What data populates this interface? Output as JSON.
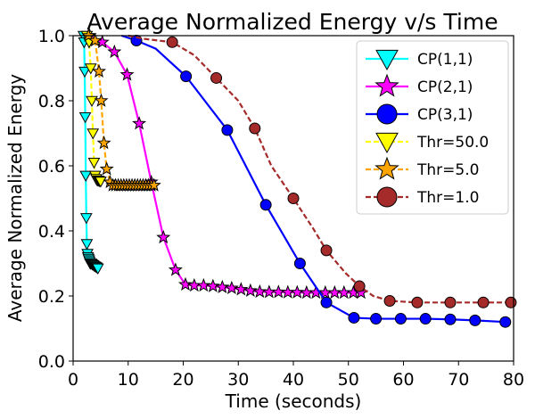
{
  "chart_data": {
    "type": "line",
    "title": "Average Normalized Energy v/s Time",
    "xlabel": "Time (seconds)",
    "ylabel": "Average Normalized Energy",
    "xlim": [
      0,
      80
    ],
    "ylim": [
      0,
      1.0
    ],
    "xticks": [
      0,
      10,
      20,
      30,
      40,
      50,
      60,
      70,
      80
    ],
    "yticks": [
      0.0,
      0.2,
      0.4,
      0.6,
      0.8,
      1.0
    ],
    "xtick_labels": [
      "0",
      "10",
      "20",
      "30",
      "40",
      "50",
      "60",
      "70",
      "80"
    ],
    "ytick_labels": [
      "0.0",
      "0.2",
      "0.4",
      "0.6",
      "0.8",
      "1.0"
    ],
    "grid": false,
    "legend_position": "top-right",
    "series": [
      {
        "name": "CP(1,1)",
        "color": "#00ffff",
        "line_style": "solid",
        "marker": "triangle-down",
        "x": [
          1.9,
          2.0,
          2.1,
          2.2,
          2.3,
          2.4,
          2.5,
          2.6,
          2.7,
          2.8,
          2.9,
          3.0,
          3.1,
          3.2,
          3.3,
          3.5,
          3.7,
          3.9,
          4.1,
          4.3,
          4.5
        ],
        "y": [
          1.0,
          0.98,
          0.89,
          0.75,
          0.57,
          0.44,
          0.36,
          0.33,
          0.32,
          0.315,
          0.31,
          0.305,
          0.3,
          0.3,
          0.3,
          0.297,
          0.295,
          0.292,
          0.29,
          0.288,
          0.285
        ]
      },
      {
        "name": "CP(2,1)",
        "color": "#ff00ff",
        "line_style": "solid",
        "marker": "star",
        "x": [
          3.0,
          5.3,
          7.5,
          9.8,
          12.0,
          14.2,
          16.4,
          18.6,
          20.4,
          22.0,
          23.7,
          25.4,
          27.1,
          28.8,
          30.5,
          32.2,
          33.9,
          35.6,
          37.3,
          39.0,
          40.7,
          42.4,
          44.1,
          45.8,
          47.5,
          49.2,
          50.9,
          52.3
        ],
        "y": [
          1.0,
          0.98,
          0.95,
          0.88,
          0.73,
          0.55,
          0.38,
          0.28,
          0.235,
          0.232,
          0.232,
          0.23,
          0.227,
          0.224,
          0.22,
          0.216,
          0.213,
          0.212,
          0.212,
          0.211,
          0.211,
          0.21,
          0.21,
          0.21,
          0.21,
          0.21,
          0.21,
          0.21
        ]
      },
      {
        "name": "CP(3,1)",
        "color": "#0000ff",
        "line_style": "solid",
        "marker": "circle",
        "x": [
          8.8,
          11.5,
          15.0,
          20.5,
          28.0,
          35.0,
          41.2,
          46.0,
          51.0,
          55.0,
          59.5,
          64.0,
          68.5,
          73.0,
          78.5
        ],
        "y": [
          1.0,
          0.985,
          0.96,
          0.875,
          0.71,
          0.48,
          0.3,
          0.18,
          0.133,
          0.13,
          0.13,
          0.13,
          0.128,
          0.125,
          0.12
        ],
        "marker_x": [
          11.5,
          20.5,
          28.0,
          35.0,
          41.2,
          46.0,
          51.0,
          55.0,
          59.5,
          64.0,
          68.5,
          73.0,
          78.5
        ],
        "marker_y": [
          0.985,
          0.875,
          0.71,
          0.48,
          0.3,
          0.18,
          0.133,
          0.13,
          0.13,
          0.13,
          0.128,
          0.125,
          0.12
        ]
      },
      {
        "name": "Thr=50.0",
        "color": "#ffff00",
        "line_style": "dashed",
        "marker": "triangle-down",
        "x": [
          2.5,
          2.9,
          3.2,
          3.4,
          3.6,
          3.8,
          4.0,
          4.2,
          4.4,
          4.6,
          4.8,
          5.0
        ],
        "y": [
          1.0,
          0.98,
          0.9,
          0.8,
          0.7,
          0.61,
          0.57,
          0.56,
          0.555,
          0.555,
          0.553,
          0.552
        ]
      },
      {
        "name": "Thr=5.0",
        "color": "#ffa500",
        "line_style": "dashed",
        "marker": "star",
        "x": [
          2.8,
          4.0,
          4.7,
          5.1,
          5.6,
          6.1,
          6.7,
          7.2,
          7.7,
          8.2,
          8.7,
          9.2,
          9.7,
          10.2,
          10.7,
          11.2,
          11.7,
          12.2,
          12.7,
          13.2,
          13.7,
          14.2,
          14.7
        ],
        "y": [
          1.0,
          0.985,
          0.89,
          0.8,
          0.67,
          0.59,
          0.55,
          0.54,
          0.54,
          0.54,
          0.54,
          0.54,
          0.54,
          0.54,
          0.54,
          0.54,
          0.54,
          0.54,
          0.54,
          0.54,
          0.54,
          0.54,
          0.54
        ]
      },
      {
        "name": "Thr=1.0",
        "color": "#a52a2a",
        "line_style": "dashed",
        "marker": "circle",
        "x": [
          10.0,
          13.0,
          18.0,
          22.0,
          26.0,
          30.0,
          33.0,
          36.0,
          40.0,
          43.5,
          46.0,
          49.5,
          52.0,
          54.5,
          57.5,
          62.5,
          68.5,
          74.5,
          79.5
        ],
        "y": [
          1.0,
          0.99,
          0.98,
          0.94,
          0.87,
          0.8,
          0.715,
          0.6,
          0.5,
          0.41,
          0.34,
          0.27,
          0.23,
          0.2,
          0.185,
          0.18,
          0.18,
          0.18,
          0.18
        ],
        "marker_x": [
          18.0,
          26.0,
          33.0,
          40.0,
          46.0,
          52.0,
          57.5,
          62.5,
          68.5,
          74.5,
          79.5
        ],
        "marker_y": [
          0.98,
          0.87,
          0.715,
          0.5,
          0.34,
          0.23,
          0.185,
          0.18,
          0.18,
          0.18,
          0.18
        ]
      }
    ]
  }
}
